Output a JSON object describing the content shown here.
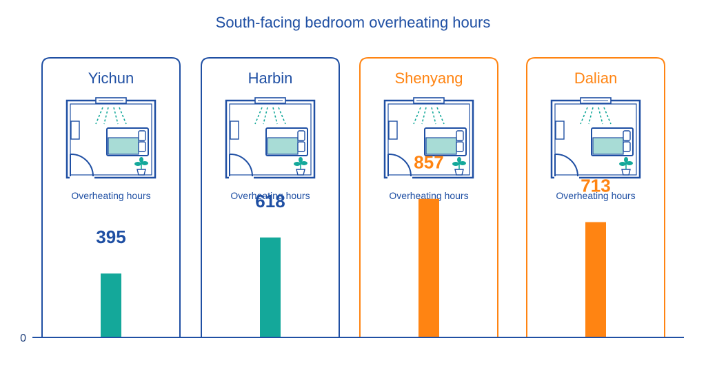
{
  "chart_data": {
    "type": "bar",
    "title": "South-facing bedroom overheating hours",
    "categories": [
      "Yichun",
      "Harbin",
      "Shenyang",
      "Dalian"
    ],
    "values": [
      395,
      618,
      857,
      713
    ],
    "series": [
      {
        "values": [
          395,
          618,
          857,
          713
        ]
      }
    ],
    "panel_caption": "Overheating hours",
    "y_tick_label": "0",
    "ylim": [
      0,
      1320
    ],
    "highlight": [
      false,
      false,
      true,
      true
    ],
    "colors": {
      "normal_frame": "#1f4fa3",
      "normal_bar": "#14a89a",
      "highlight": "#ff8412",
      "bed_fill": "#a8dcd6",
      "plant": "#14a89a",
      "axis": "#1f4fa3"
    }
  }
}
